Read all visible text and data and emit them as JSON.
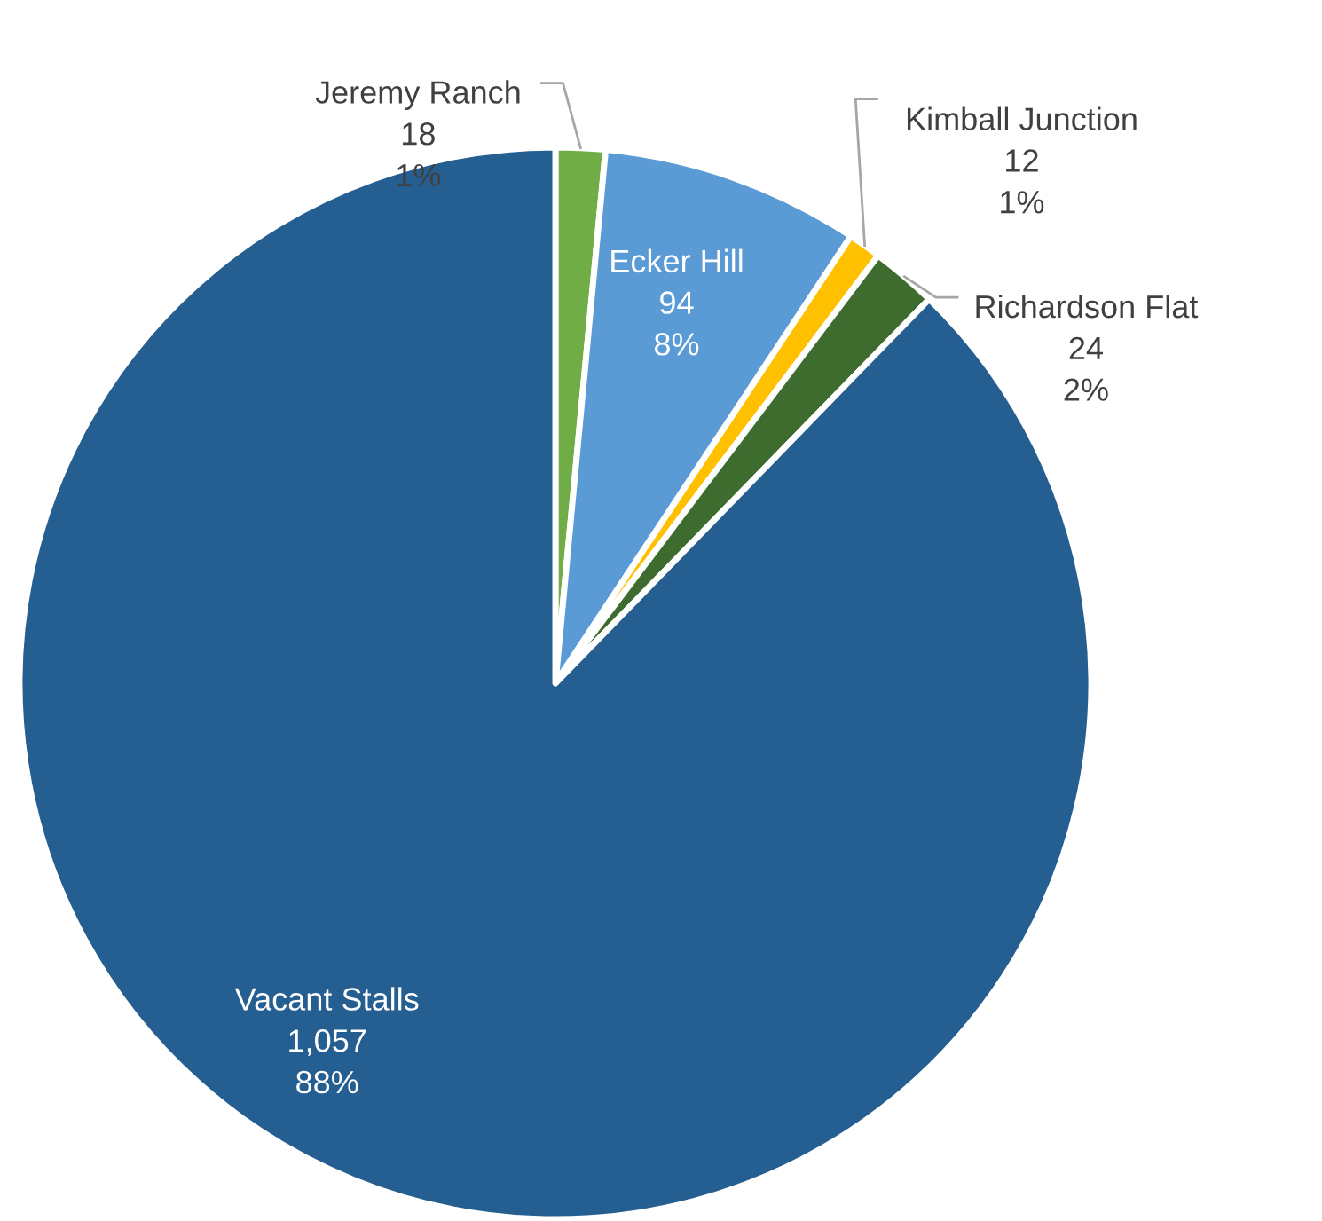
{
  "chart_data": {
    "type": "pie",
    "categories": [
      "Jeremy Ranch",
      "Ecker Hill",
      "Kimball Junction",
      "Richardson Flat",
      "Vacant Stalls"
    ],
    "values": [
      18,
      94,
      12,
      24,
      1057
    ],
    "value_labels": [
      "18\n1%",
      "94\n8%",
      "12\n1%",
      "24\n2%",
      "1,057\n88%"
    ],
    "colors": [
      "#70ad47",
      "#5b9bd5",
      "#ffc000",
      "#3e6b2e",
      "#255e91"
    ],
    "legend": false
  }
}
